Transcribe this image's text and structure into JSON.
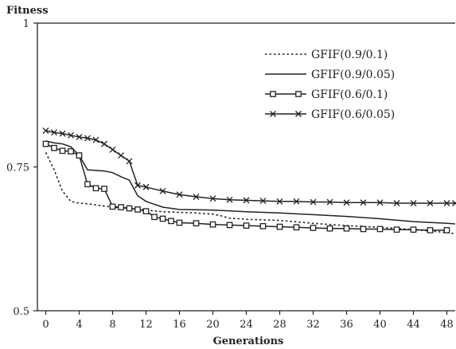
{
  "chart_data": {
    "type": "line",
    "ylabel": "Fitness",
    "xlabel": "Generations",
    "xlim": [
      -1,
      49
    ],
    "ylim": [
      0.5,
      1
    ],
    "x_ticks": [
      0,
      4,
      8,
      12,
      16,
      20,
      24,
      28,
      32,
      36,
      40,
      44,
      48
    ],
    "x_tick_labels": [
      "0",
      "4",
      "8",
      "12",
      "16",
      "20",
      "24",
      "28",
      "32",
      "36",
      "40",
      "44",
      "48"
    ],
    "y_ticks": [
      0.5,
      0.75,
      1
    ],
    "y_tick_labels": [
      "0.5",
      "0.75",
      "1"
    ],
    "grid": false,
    "legend_position": "top-right",
    "series": [
      {
        "name": "GFIF(0.9/0.1)",
        "style": "dotted",
        "marker": "none",
        "points": [
          [
            0,
            0.775
          ],
          [
            1,
            0.745
          ],
          [
            2,
            0.708
          ],
          [
            3,
            0.69
          ],
          [
            4,
            0.687
          ],
          [
            5,
            0.686
          ],
          [
            6,
            0.684
          ],
          [
            8,
            0.68
          ],
          [
            10,
            0.678
          ],
          [
            12,
            0.675
          ],
          [
            14,
            0.672
          ],
          [
            16,
            0.671
          ],
          [
            18,
            0.67
          ],
          [
            20,
            0.668
          ],
          [
            21,
            0.665
          ],
          [
            22,
            0.661
          ],
          [
            24,
            0.659
          ],
          [
            28,
            0.657
          ],
          [
            32,
            0.652
          ],
          [
            36,
            0.648
          ],
          [
            40,
            0.645
          ],
          [
            44,
            0.641
          ],
          [
            48,
            0.636
          ],
          [
            49,
            0.634
          ]
        ]
      },
      {
        "name": "GFIF(0.9/0.05)",
        "style": "solid",
        "marker": "none",
        "points": [
          [
            0,
            0.795
          ],
          [
            1,
            0.792
          ],
          [
            2,
            0.79
          ],
          [
            3,
            0.785
          ],
          [
            4,
            0.77
          ],
          [
            5,
            0.745
          ],
          [
            7,
            0.743
          ],
          [
            8,
            0.74
          ],
          [
            9,
            0.733
          ],
          [
            10,
            0.727
          ],
          [
            11,
            0.7
          ],
          [
            12,
            0.69
          ],
          [
            14,
            0.68
          ],
          [
            16,
            0.676
          ],
          [
            20,
            0.675
          ],
          [
            24,
            0.672
          ],
          [
            28,
            0.67
          ],
          [
            32,
            0.667
          ],
          [
            36,
            0.664
          ],
          [
            40,
            0.66
          ],
          [
            44,
            0.655
          ],
          [
            48,
            0.652
          ],
          [
            49,
            0.651
          ]
        ]
      },
      {
        "name": "GFIF(0.6/0.1)",
        "style": "solid",
        "marker": "square",
        "points": [
          [
            0,
            0.79
          ],
          [
            1,
            0.783
          ],
          [
            2,
            0.778
          ],
          [
            3,
            0.777
          ],
          [
            4,
            0.77
          ],
          [
            5,
            0.72
          ],
          [
            6,
            0.713
          ],
          [
            7,
            0.712
          ],
          [
            8,
            0.681
          ],
          [
            9,
            0.68
          ],
          [
            10,
            0.678
          ],
          [
            11,
            0.676
          ],
          [
            12,
            0.673
          ],
          [
            13,
            0.663
          ],
          [
            14,
            0.66
          ],
          [
            15,
            0.656
          ],
          [
            16,
            0.653
          ],
          [
            18,
            0.652
          ],
          [
            20,
            0.65
          ],
          [
            22,
            0.649
          ],
          [
            24,
            0.648
          ],
          [
            26,
            0.647
          ],
          [
            28,
            0.646
          ],
          [
            30,
            0.645
          ],
          [
            32,
            0.644
          ],
          [
            34,
            0.643
          ],
          [
            36,
            0.643
          ],
          [
            38,
            0.642
          ],
          [
            40,
            0.642
          ],
          [
            42,
            0.641
          ],
          [
            44,
            0.641
          ],
          [
            46,
            0.64
          ],
          [
            48,
            0.64
          ]
        ]
      },
      {
        "name": "GFIF(0.6/0.05)",
        "style": "solid",
        "marker": "x",
        "points": [
          [
            0,
            0.813
          ],
          [
            1,
            0.81
          ],
          [
            2,
            0.808
          ],
          [
            3,
            0.805
          ],
          [
            4,
            0.802
          ],
          [
            5,
            0.8
          ],
          [
            6,
            0.797
          ],
          [
            7,
            0.79
          ],
          [
            8,
            0.78
          ],
          [
            9,
            0.77
          ],
          [
            10,
            0.76
          ],
          [
            11,
            0.718
          ],
          [
            12,
            0.715
          ],
          [
            14,
            0.708
          ],
          [
            16,
            0.702
          ],
          [
            18,
            0.698
          ],
          [
            20,
            0.695
          ],
          [
            22,
            0.693
          ],
          [
            24,
            0.692
          ],
          [
            26,
            0.691
          ],
          [
            28,
            0.69
          ],
          [
            30,
            0.69
          ],
          [
            32,
            0.689
          ],
          [
            34,
            0.689
          ],
          [
            36,
            0.688
          ],
          [
            38,
            0.688
          ],
          [
            40,
            0.688
          ],
          [
            42,
            0.687
          ],
          [
            44,
            0.687
          ],
          [
            46,
            0.687
          ],
          [
            48,
            0.687
          ],
          [
            49,
            0.687
          ]
        ]
      }
    ]
  }
}
